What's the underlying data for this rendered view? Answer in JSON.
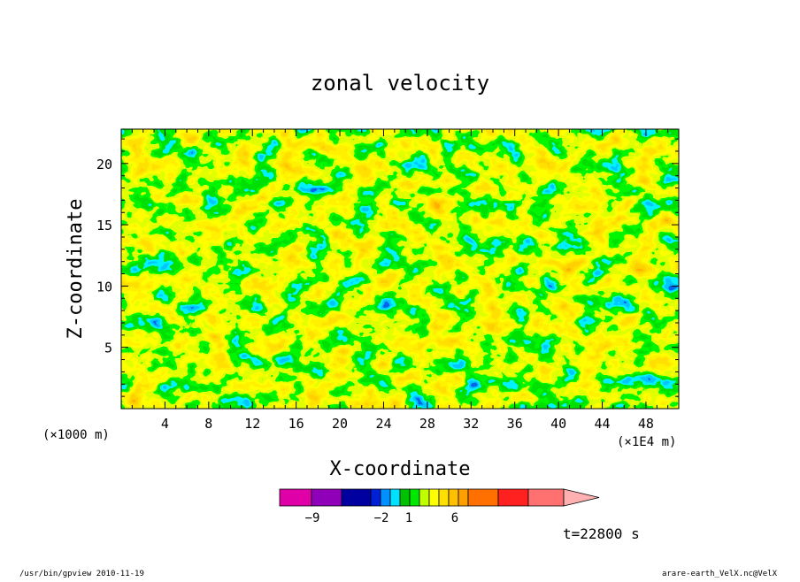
{
  "chart_data": {
    "type": "heatmap",
    "title": "zonal velocity",
    "xlabel": "X-coordinate",
    "ylabel": "Z-coordinate",
    "x_unit_label": "(×1E4 m)",
    "z_unit_label": "(×1000 m)",
    "x_ticks": [
      4,
      8,
      12,
      16,
      20,
      24,
      28,
      32,
      36,
      40,
      44,
      48
    ],
    "z_ticks": [
      5,
      10,
      15,
      20
    ],
    "xlim": [
      0,
      51
    ],
    "zlim": [
      0,
      22.8
    ],
    "colorbar": {
      "colors": [
        "#e000a8",
        "#9000b8",
        "#0000a0",
        "#0020d8",
        "#0090ff",
        "#00e0ff",
        "#00c000",
        "#00e800",
        "#c0ff00",
        "#ffff00",
        "#ffe000",
        "#ffc000",
        "#ffa000",
        "#ff7000",
        "#ff2020",
        "#ff7070",
        "#ffb0b0"
      ],
      "tick_labels": [
        "−9",
        "−2",
        "1",
        "6"
      ],
      "tick_values": [
        -9,
        -2,
        1,
        6
      ],
      "extend": "max"
    },
    "legend": "none"
  },
  "annotations": {
    "time": "t=22800 s",
    "footer_left": "/usr/bin/gpview   2010-11-19",
    "footer_right": "arare-earth_VelX.nc@VelX"
  }
}
